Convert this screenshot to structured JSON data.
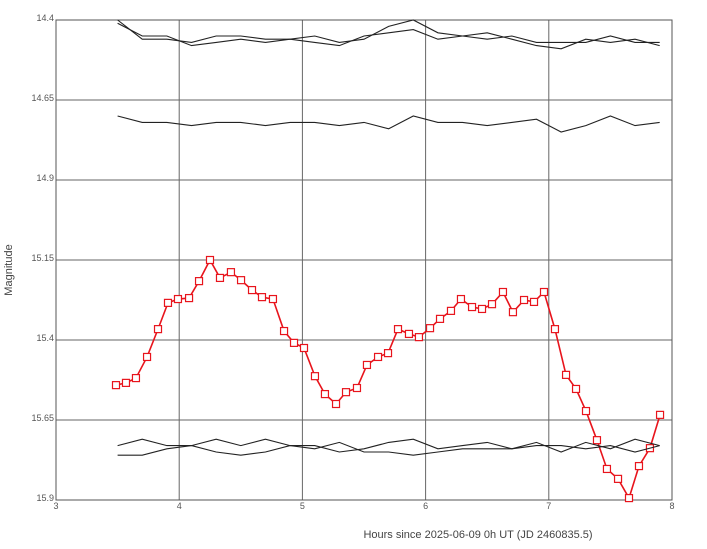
{
  "chart_data": {
    "type": "line",
    "xlabel": "Hours since 2025-06-09 0h UT (JD 2460835.5)",
    "ylabel": "Magnitude",
    "xlim": [
      3,
      8
    ],
    "xticks": [
      3,
      4,
      5,
      6,
      7,
      8
    ],
    "ylim": [
      15.9,
      14.4
    ],
    "yticks": [
      {
        "value": 14.4,
        "label": "14.4"
      },
      {
        "value": 14.65,
        "label": "14.65"
      },
      {
        "value": 14.9,
        "label": "14.9"
      },
      {
        "value": 15.15,
        "label": "15.15"
      },
      {
        "value": 15.4,
        "label": "15.4"
      },
      {
        "value": 15.65,
        "label": "15.65"
      },
      {
        "value": 15.9,
        "label": "15.9"
      }
    ],
    "grid": true,
    "series": [
      {
        "color": "#e8141c",
        "marker": "square",
        "x": [
          3.487,
          3.568,
          3.649,
          3.739,
          3.828,
          3.909,
          3.99,
          4.08,
          4.161,
          4.25,
          4.331,
          4.42,
          4.502,
          4.591,
          4.672,
          4.761,
          4.851,
          4.932,
          5.013,
          5.102,
          5.183,
          5.273,
          5.354,
          5.443,
          5.524,
          5.614,
          5.695,
          5.776,
          5.865,
          5.946,
          6.036,
          6.117,
          6.206,
          6.287,
          6.377,
          6.458,
          6.539,
          6.628,
          6.709,
          6.799,
          6.88,
          6.961,
          7.05,
          7.14,
          7.221,
          7.302,
          7.391,
          7.472,
          7.562,
          7.651,
          7.732,
          7.821,
          7.903
        ],
        "values": [
          15.541,
          15.534,
          15.519,
          15.453,
          15.366,
          15.284,
          15.272,
          15.269,
          15.216,
          15.15,
          15.206,
          15.188,
          15.213,
          15.244,
          15.266,
          15.272,
          15.372,
          15.409,
          15.425,
          15.513,
          15.569,
          15.6,
          15.563,
          15.55,
          15.478,
          15.453,
          15.441,
          15.366,
          15.381,
          15.391,
          15.363,
          15.334,
          15.309,
          15.272,
          15.297,
          15.303,
          15.288,
          15.25,
          15.313,
          15.275,
          15.281,
          15.25,
          15.366,
          15.509,
          15.553,
          15.622,
          15.713,
          15.803,
          15.834,
          15.894,
          15.794,
          15.738,
          15.634
        ]
      },
      {
        "color": "#222222",
        "x": [
          3.5,
          3.7,
          3.9,
          4.1,
          4.3,
          4.5,
          4.7,
          4.9,
          5.1,
          5.3,
          5.5,
          5.7,
          5.9,
          6.1,
          6.3,
          6.5,
          6.7,
          6.9,
          7.1,
          7.3,
          7.5,
          7.7,
          7.9
        ],
        "values": [
          14.4,
          14.46,
          14.46,
          14.47,
          14.45,
          14.45,
          14.46,
          14.46,
          14.45,
          14.47,
          14.46,
          14.42,
          14.4,
          14.44,
          14.45,
          14.46,
          14.45,
          14.47,
          14.47,
          14.47,
          14.45,
          14.47,
          14.47
        ]
      },
      {
        "color": "#222222",
        "x": [
          3.5,
          3.7,
          3.9,
          4.1,
          4.3,
          4.5,
          4.7,
          4.9,
          5.1,
          5.3,
          5.5,
          5.7,
          5.9,
          6.1,
          6.3,
          6.5,
          6.7,
          6.9,
          7.1,
          7.3,
          7.5,
          7.7,
          7.9
        ],
        "values": [
          14.41,
          14.45,
          14.45,
          14.48,
          14.47,
          14.46,
          14.47,
          14.46,
          14.47,
          14.48,
          14.45,
          14.44,
          14.43,
          14.46,
          14.45,
          14.44,
          14.46,
          14.48,
          14.49,
          14.46,
          14.47,
          14.46,
          14.48
        ]
      },
      {
        "color": "#222222",
        "x": [
          3.5,
          3.7,
          3.9,
          4.1,
          4.3,
          4.5,
          4.7,
          4.9,
          5.1,
          5.3,
          5.5,
          5.7,
          5.9,
          6.1,
          6.3,
          6.5,
          6.7,
          6.9,
          7.1,
          7.3,
          7.5,
          7.7,
          7.9
        ],
        "values": [
          14.7,
          14.72,
          14.72,
          14.73,
          14.72,
          14.72,
          14.73,
          14.72,
          14.72,
          14.73,
          14.72,
          14.74,
          14.7,
          14.72,
          14.72,
          14.73,
          14.72,
          14.71,
          14.75,
          14.73,
          14.7,
          14.73,
          14.72
        ]
      },
      {
        "color": "#222222",
        "x": [
          3.5,
          3.7,
          3.9,
          4.1,
          4.3,
          4.5,
          4.7,
          4.9,
          5.1,
          5.3,
          5.5,
          5.7,
          5.9,
          6.1,
          6.3,
          6.5,
          6.7,
          6.9,
          7.1,
          7.3,
          7.5,
          7.7,
          7.9
        ],
        "values": [
          15.73,
          15.71,
          15.73,
          15.73,
          15.71,
          15.73,
          15.71,
          15.73,
          15.73,
          15.75,
          15.74,
          15.72,
          15.71,
          15.74,
          15.73,
          15.72,
          15.74,
          15.72,
          15.75,
          15.72,
          15.74,
          15.71,
          15.73
        ]
      },
      {
        "color": "#222222",
        "x": [
          3.5,
          3.7,
          3.9,
          4.1,
          4.3,
          4.5,
          4.7,
          4.9,
          5.1,
          5.3,
          5.5,
          5.7,
          5.9,
          6.1,
          6.3,
          6.5,
          6.7,
          6.9,
          7.1,
          7.3,
          7.5,
          7.7,
          7.9
        ],
        "values": [
          15.76,
          15.76,
          15.74,
          15.73,
          15.75,
          15.76,
          15.75,
          15.73,
          15.74,
          15.72,
          15.75,
          15.75,
          15.76,
          15.75,
          15.74,
          15.74,
          15.74,
          15.73,
          15.73,
          15.74,
          15.73,
          15.75,
          15.73
        ]
      }
    ]
  }
}
